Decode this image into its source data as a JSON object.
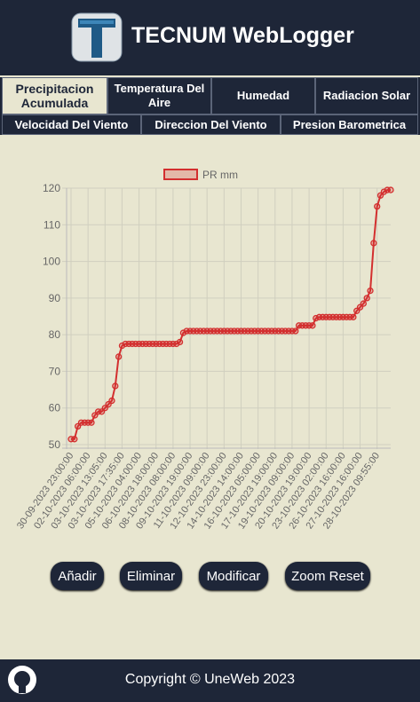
{
  "header": {
    "title": "TECNUM WebLogger"
  },
  "tabs": {
    "row1": [
      "Precipitacion Acumulada",
      "Temperatura Del Aire",
      "Humedad",
      "Radiacion Solar"
    ],
    "row2": [
      "Velocidad Del Viento",
      "Direccion Del Viento",
      "Presion Barometrica"
    ]
  },
  "chart_data": {
    "type": "line",
    "categories": [
      "30-09-2023 23:00:00",
      null,
      null,
      null,
      null,
      "02-10-2023 06:00:00",
      null,
      null,
      null,
      null,
      "03-10-2023 13:05:00",
      null,
      null,
      null,
      null,
      "03-10-2023 17:35:00",
      null,
      null,
      null,
      null,
      "05-10-2023 04:00:00",
      null,
      null,
      null,
      null,
      "06-10-2023 18:00:00",
      null,
      null,
      null,
      null,
      "08-10-2023 08:00:00",
      null,
      null,
      null,
      null,
      "09-10-2023 19:00:00",
      null,
      null,
      null,
      null,
      "11-10-2023 09:00:00",
      null,
      null,
      null,
      null,
      "12-10-2023 23:00:00",
      null,
      null,
      null,
      null,
      "14-10-2023 14:00:00",
      null,
      null,
      null,
      null,
      "16-10-2023 05:00:00",
      null,
      null,
      null,
      null,
      "17-10-2023 19:00:00",
      null,
      null,
      null,
      null,
      "19-10-2023 09:00:00",
      null,
      null,
      null,
      null,
      "20-10-2023 19:00:00",
      null,
      null,
      null,
      null,
      "23-10-2023 02:00:00",
      null,
      null,
      null,
      null,
      "26-10-2023 16:00:00",
      null,
      null,
      null,
      null,
      "27-10-2023 16:00:00",
      null,
      null,
      null,
      null,
      "28-10-2023 09:55:00",
      null,
      null,
      null,
      null
    ],
    "series": [
      {
        "name": "PR mm",
        "color": "#d32f2f",
        "values": [
          51.5,
          51.5,
          55,
          56,
          56,
          56,
          56,
          58,
          59,
          59,
          60,
          61,
          62,
          66,
          74,
          77,
          77.5,
          77.5,
          77.5,
          77.5,
          77.5,
          77.5,
          77.5,
          77.5,
          77.5,
          77.5,
          77.5,
          77.5,
          77.5,
          77.5,
          77.5,
          77.5,
          78,
          80.5,
          81,
          81,
          81,
          81,
          81,
          81,
          81,
          81,
          81,
          81,
          81,
          81,
          81,
          81,
          81,
          81,
          81,
          81,
          81,
          81,
          81,
          81,
          81,
          81,
          81,
          81,
          81,
          81,
          81,
          81,
          81,
          81,
          81,
          82.5,
          82.5,
          82.5,
          82.5,
          82.5,
          84.5,
          84.8,
          84.8,
          84.8,
          84.8,
          84.8,
          84.8,
          84.8,
          84.8,
          84.8,
          84.8,
          84.8,
          86.5,
          87.5,
          88.5,
          90,
          92,
          105,
          115,
          118,
          119,
          119.5,
          119.5
        ]
      }
    ],
    "ylim": [
      50,
      120
    ],
    "yticks": [
      50,
      60,
      70,
      80,
      90,
      100,
      110,
      120
    ],
    "grid": true
  },
  "buttons": [
    "Añadir",
    "Eliminar",
    "Modificar",
    "Zoom Reset"
  ],
  "footer": {
    "copyright": "Copyright © UneWeb 2023"
  }
}
